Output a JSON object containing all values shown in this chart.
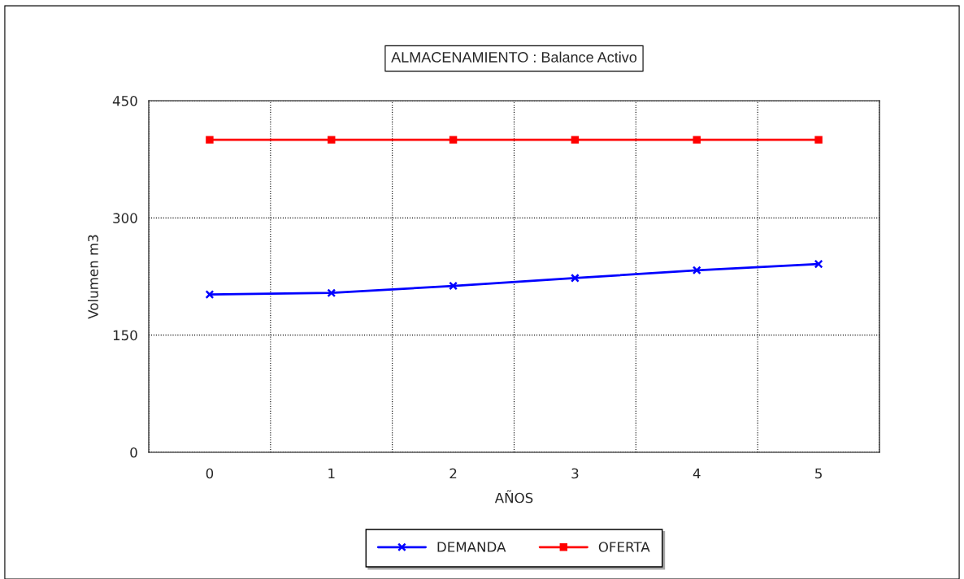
{
  "chart_data": {
    "type": "line",
    "title": "ALMACENAMIENTO : Balance Activo",
    "xlabel": "AÑOS",
    "ylabel": "Volumen m3",
    "categories": [
      "0",
      "1",
      "2",
      "3",
      "4",
      "5"
    ],
    "series": [
      {
        "name": "DEMANDA",
        "color": "#0000ff",
        "marker": "cross",
        "values": [
          202,
          204,
          213,
          223,
          233,
          241
        ]
      },
      {
        "name": "OFERTA",
        "color": "#ff0000",
        "marker": "square",
        "values": [
          400,
          400,
          400,
          400,
          400,
          400
        ]
      }
    ],
    "ylim": [
      0,
      450
    ],
    "yticks": [
      0,
      150,
      300,
      450
    ],
    "grid": true,
    "legend": "bottom",
    "line_style": "solid"
  }
}
